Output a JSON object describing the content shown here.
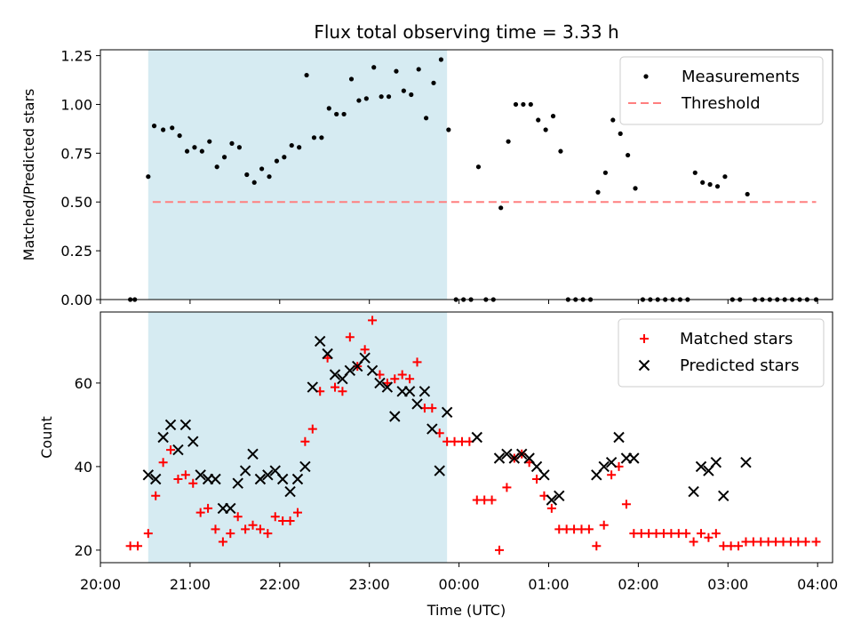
{
  "chart_data": [
    {
      "type": "scatter",
      "title": "Flux total observing time = 3.33 h",
      "xlabel": "",
      "ylabel": "Matched/Predicted stars",
      "xlim": [
        "20:00",
        "04:10"
      ],
      "ylim": [
        0,
        1.28
      ],
      "yticks": [
        "0.00",
        "0.25",
        "0.50",
        "0.75",
        "1.00",
        "1.25"
      ],
      "legend_position": "top-right",
      "shaded_interval": [
        "20:32",
        "23:52"
      ],
      "threshold": {
        "name": "Threshold",
        "value": 0.5,
        "x_range": [
          "20:35",
          "03:59"
        ],
        "color": "#ff7f7f"
      },
      "series": [
        {
          "name": "Measurements",
          "color": "#000000",
          "points": [
            [
              "20:20",
              0
            ],
            [
              "20:23",
              0
            ],
            [
              "20:32",
              0.63
            ],
            [
              "20:36",
              0.89
            ],
            [
              "20:42",
              0.87
            ],
            [
              "20:48",
              0.88
            ],
            [
              "20:53",
              0.84
            ],
            [
              "20:58",
              0.76
            ],
            [
              "21:03",
              0.78
            ],
            [
              "21:08",
              0.76
            ],
            [
              "21:13",
              0.81
            ],
            [
              "21:18",
              0.68
            ],
            [
              "21:23",
              0.73
            ],
            [
              "21:28",
              0.8
            ],
            [
              "21:33",
              0.78
            ],
            [
              "21:38",
              0.64
            ],
            [
              "21:43",
              0.6
            ],
            [
              "21:48",
              0.67
            ],
            [
              "21:53",
              0.63
            ],
            [
              "21:58",
              0.71
            ],
            [
              "22:03",
              0.73
            ],
            [
              "22:08",
              0.79
            ],
            [
              "22:13",
              0.78
            ],
            [
              "22:18",
              1.15
            ],
            [
              "22:23",
              0.83
            ],
            [
              "22:28",
              0.83
            ],
            [
              "22:33",
              0.98
            ],
            [
              "22:38",
              0.95
            ],
            [
              "22:43",
              0.95
            ],
            [
              "22:48",
              1.13
            ],
            [
              "22:53",
              1.02
            ],
            [
              "22:58",
              1.03
            ],
            [
              "23:03",
              1.19
            ],
            [
              "23:08",
              1.04
            ],
            [
              "23:13",
              1.04
            ],
            [
              "23:18",
              1.17
            ],
            [
              "23:23",
              1.07
            ],
            [
              "23:28",
              1.05
            ],
            [
              "23:33",
              1.18
            ],
            [
              "23:38",
              0.93
            ],
            [
              "23:43",
              1.11
            ],
            [
              "23:48",
              1.23
            ],
            [
              "23:53",
              0.87
            ],
            [
              "23:58",
              0
            ],
            [
              "00:03",
              0
            ],
            [
              "00:08",
              0
            ],
            [
              "00:13",
              0.68
            ],
            [
              "00:18",
              0
            ],
            [
              "00:23",
              0
            ],
            [
              "00:28",
              0.47
            ],
            [
              "00:33",
              0.81
            ],
            [
              "00:38",
              1.0
            ],
            [
              "00:43",
              1.0
            ],
            [
              "00:48",
              1.0
            ],
            [
              "00:53",
              0.92
            ],
            [
              "00:58",
              0.87
            ],
            [
              "01:03",
              0.94
            ],
            [
              "01:08",
              0.76
            ],
            [
              "01:13",
              0
            ],
            [
              "01:18",
              0
            ],
            [
              "01:23",
              0
            ],
            [
              "01:28",
              0
            ],
            [
              "01:33",
              0.55
            ],
            [
              "01:38",
              0.65
            ],
            [
              "01:43",
              0.92
            ],
            [
              "01:48",
              0.85
            ],
            [
              "01:53",
              0.74
            ],
            [
              "01:58",
              0.57
            ],
            [
              "02:03",
              0
            ],
            [
              "02:08",
              0
            ],
            [
              "02:13",
              0
            ],
            [
              "02:18",
              0
            ],
            [
              "02:23",
              0
            ],
            [
              "02:28",
              0
            ],
            [
              "02:33",
              0
            ],
            [
              "02:38",
              0.65
            ],
            [
              "02:43",
              0.6
            ],
            [
              "02:48",
              0.59
            ],
            [
              "02:53",
              0.58
            ],
            [
              "02:58",
              0.63
            ],
            [
              "03:03",
              0
            ],
            [
              "03:08",
              0
            ],
            [
              "03:13",
              0.54
            ],
            [
              "03:18",
              0
            ],
            [
              "03:23",
              0
            ],
            [
              "03:28",
              0
            ],
            [
              "03:33",
              0
            ],
            [
              "03:38",
              0
            ],
            [
              "03:43",
              0
            ],
            [
              "03:48",
              0
            ],
            [
              "03:53",
              0
            ],
            [
              "03:59",
              0
            ]
          ]
        }
      ]
    },
    {
      "type": "scatter",
      "title": "",
      "xlabel": "Time (UTC)",
      "ylabel": "Count",
      "xlim": [
        "20:00",
        "04:10"
      ],
      "ylim": [
        17,
        77
      ],
      "yticks": [
        "20",
        "40",
        "60"
      ],
      "xticks": [
        "20:00",
        "21:00",
        "22:00",
        "23:00",
        "00:00",
        "01:00",
        "02:00",
        "03:00",
        "04:00"
      ],
      "legend_position": "top-right",
      "shaded_interval": [
        "20:32",
        "23:52"
      ],
      "series": [
        {
          "name": "Matched stars",
          "color": "#ff0000",
          "marker": "plus",
          "points": [
            [
              "20:20",
              21
            ],
            [
              "20:25",
              21
            ],
            [
              "20:32",
              24
            ],
            [
              "20:37",
              33
            ],
            [
              "20:42",
              41
            ],
            [
              "20:47",
              44
            ],
            [
              "20:52",
              37
            ],
            [
              "20:57",
              38
            ],
            [
              "21:02",
              36
            ],
            [
              "21:07",
              29
            ],
            [
              "21:12",
              30
            ],
            [
              "21:17",
              25
            ],
            [
              "21:22",
              22
            ],
            [
              "21:27",
              24
            ],
            [
              "21:32",
              28
            ],
            [
              "21:37",
              25
            ],
            [
              "21:42",
              26
            ],
            [
              "21:47",
              25
            ],
            [
              "21:52",
              24
            ],
            [
              "21:57",
              28
            ],
            [
              "22:02",
              27
            ],
            [
              "22:07",
              27
            ],
            [
              "22:12",
              29
            ],
            [
              "22:17",
              46
            ],
            [
              "22:22",
              49
            ],
            [
              "22:27",
              58
            ],
            [
              "22:32",
              66
            ],
            [
              "22:37",
              59
            ],
            [
              "22:42",
              58
            ],
            [
              "22:47",
              71
            ],
            [
              "22:52",
              64
            ],
            [
              "22:57",
              68
            ],
            [
              "23:02",
              75
            ],
            [
              "23:07",
              62
            ],
            [
              "23:12",
              60
            ],
            [
              "23:17",
              61
            ],
            [
              "23:22",
              62
            ],
            [
              "23:27",
              61
            ],
            [
              "23:32",
              65
            ],
            [
              "23:37",
              54
            ],
            [
              "23:42",
              54
            ],
            [
              "23:47",
              48
            ],
            [
              "23:52",
              46
            ],
            [
              "23:57",
              46
            ],
            [
              "00:02",
              46
            ],
            [
              "00:07",
              46
            ],
            [
              "00:12",
              32
            ],
            [
              "00:17",
              32
            ],
            [
              "00:22",
              32
            ],
            [
              "00:27",
              20
            ],
            [
              "00:32",
              35
            ],
            [
              "00:37",
              42
            ],
            [
              "00:42",
              43
            ],
            [
              "00:47",
              41
            ],
            [
              "00:52",
              37
            ],
            [
              "00:57",
              33
            ],
            [
              "01:02",
              30
            ],
            [
              "01:07",
              25
            ],
            [
              "01:12",
              25
            ],
            [
              "01:17",
              25
            ],
            [
              "01:22",
              25
            ],
            [
              "01:27",
              25
            ],
            [
              "01:32",
              21
            ],
            [
              "01:37",
              26
            ],
            [
              "01:42",
              38
            ],
            [
              "01:47",
              40
            ],
            [
              "01:52",
              31
            ],
            [
              "01:57",
              24
            ],
            [
              "02:02",
              24
            ],
            [
              "02:07",
              24
            ],
            [
              "02:12",
              24
            ],
            [
              "02:17",
              24
            ],
            [
              "02:22",
              24
            ],
            [
              "02:27",
              24
            ],
            [
              "02:32",
              24
            ],
            [
              "02:37",
              22
            ],
            [
              "02:42",
              24
            ],
            [
              "02:47",
              23
            ],
            [
              "02:52",
              24
            ],
            [
              "02:57",
              21
            ],
            [
              "03:02",
              21
            ],
            [
              "03:07",
              21
            ],
            [
              "03:12",
              22
            ],
            [
              "03:17",
              22
            ],
            [
              "03:22",
              22
            ],
            [
              "03:27",
              22
            ],
            [
              "03:32",
              22
            ],
            [
              "03:37",
              22
            ],
            [
              "03:42",
              22
            ],
            [
              "03:47",
              22
            ],
            [
              "03:52",
              22
            ],
            [
              "03:59",
              22
            ]
          ]
        },
        {
          "name": "Predicted stars",
          "color": "#000000",
          "marker": "x",
          "points": [
            [
              "20:32",
              38
            ],
            [
              "20:37",
              37
            ],
            [
              "20:42",
              47
            ],
            [
              "20:47",
              50
            ],
            [
              "20:52",
              44
            ],
            [
              "20:57",
              50
            ],
            [
              "21:02",
              46
            ],
            [
              "21:07",
              38
            ],
            [
              "21:12",
              37
            ],
            [
              "21:17",
              37
            ],
            [
              "21:22",
              30
            ],
            [
              "21:27",
              30
            ],
            [
              "21:32",
              36
            ],
            [
              "21:37",
              39
            ],
            [
              "21:42",
              43
            ],
            [
              "21:47",
              37
            ],
            [
              "21:52",
              38
            ],
            [
              "21:57",
              39
            ],
            [
              "22:02",
              37
            ],
            [
              "22:07",
              34
            ],
            [
              "22:12",
              37
            ],
            [
              "22:17",
              40
            ],
            [
              "22:22",
              59
            ],
            [
              "22:27",
              70
            ],
            [
              "22:32",
              67
            ],
            [
              "22:37",
              62
            ],
            [
              "22:42",
              61
            ],
            [
              "22:47",
              63
            ],
            [
              "22:52",
              64
            ],
            [
              "22:57",
              66
            ],
            [
              "23:02",
              63
            ],
            [
              "23:07",
              60
            ],
            [
              "23:12",
              59
            ],
            [
              "23:17",
              52
            ],
            [
              "23:22",
              58
            ],
            [
              "23:27",
              58
            ],
            [
              "23:32",
              55
            ],
            [
              "23:37",
              58
            ],
            [
              "23:42",
              49
            ],
            [
              "23:47",
              39
            ],
            [
              "23:52",
              53
            ],
            [
              "00:12",
              47
            ],
            [
              "00:27",
              42
            ],
            [
              "00:32",
              43
            ],
            [
              "00:37",
              42
            ],
            [
              "00:42",
              43
            ],
            [
              "00:47",
              42
            ],
            [
              "00:52",
              40
            ],
            [
              "00:57",
              38
            ],
            [
              "01:02",
              32
            ],
            [
              "01:07",
              33
            ],
            [
              "01:32",
              38
            ],
            [
              "01:37",
              40
            ],
            [
              "01:42",
              41
            ],
            [
              "01:47",
              47
            ],
            [
              "01:52",
              42
            ],
            [
              "01:57",
              42
            ],
            [
              "02:37",
              34
            ],
            [
              "02:42",
              40
            ],
            [
              "02:47",
              39
            ],
            [
              "02:52",
              41
            ],
            [
              "02:57",
              33
            ],
            [
              "03:12",
              41
            ]
          ]
        }
      ]
    }
  ]
}
